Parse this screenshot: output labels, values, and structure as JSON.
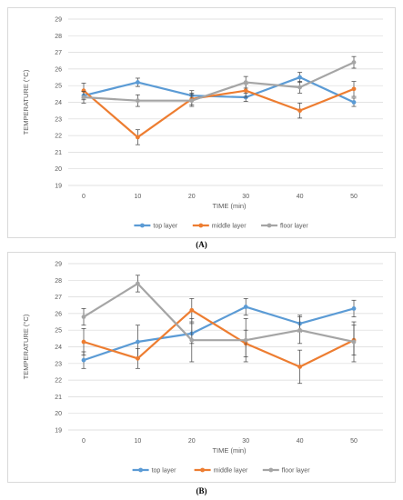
{
  "chart_data": [
    {
      "type": "line",
      "panel": "(A)",
      "xlabel": "TIME  (min)",
      "ylabel": "TEMPERATURE (°C)",
      "x": [
        0,
        10,
        20,
        30,
        40,
        50
      ],
      "ylim": [
        19,
        29
      ],
      "yticks": [
        19,
        20,
        21,
        22,
        23,
        24,
        25,
        26,
        27,
        28,
        29
      ],
      "grid": true,
      "legend_placement": "bottom",
      "series": [
        {
          "name": "top layer",
          "color": "#5b9bd5",
          "values": [
            24.4,
            25.2,
            24.4,
            24.3,
            25.5,
            24.0
          ],
          "errors": [
            0.25,
            0.25,
            0.3,
            0.25,
            0.3,
            0.25
          ]
        },
        {
          "name": "middle layer",
          "color": "#ed7d31",
          "values": [
            24.7,
            21.9,
            24.2,
            24.7,
            23.5,
            24.8
          ],
          "errors": [
            0.45,
            0.45,
            0.35,
            0.4,
            0.45,
            0.45
          ]
        },
        {
          "name": "floor layer",
          "color": "#a5a5a5",
          "values": [
            24.3,
            24.1,
            24.1,
            25.2,
            24.9,
            26.4
          ],
          "errors": [
            0.35,
            0.35,
            0.35,
            0.35,
            0.35,
            0.35
          ]
        }
      ]
    },
    {
      "type": "line",
      "panel": "(B)",
      "xlabel": "TIME (min)",
      "ylabel": "TEMPERATURE (°C)",
      "x": [
        0,
        10,
        20,
        30,
        40,
        50
      ],
      "ylim": [
        19,
        29
      ],
      "yticks": [
        19,
        20,
        21,
        22,
        23,
        24,
        25,
        26,
        27,
        28,
        29
      ],
      "grid": true,
      "legend_placement": "bottom",
      "series": [
        {
          "name": "top  layer",
          "color": "#5b9bd5",
          "values": [
            23.2,
            24.3,
            24.8,
            26.4,
            25.4,
            26.3
          ],
          "errors": [
            0.5,
            1.0,
            0.6,
            0.5,
            0.5,
            0.5
          ]
        },
        {
          "name": "middle layer",
          "color": "#ed7d31",
          "values": [
            24.3,
            23.3,
            26.2,
            24.2,
            22.8,
            24.4
          ],
          "errors": [
            0.8,
            0.6,
            0.7,
            0.8,
            1.0,
            0.9
          ]
        },
        {
          "name": "floor layer",
          "color": "#a5a5a5",
          "values": [
            25.8,
            27.8,
            24.4,
            24.4,
            25.0,
            24.3
          ],
          "errors": [
            0.5,
            0.5,
            1.3,
            1.3,
            0.8,
            1.2
          ]
        }
      ]
    }
  ],
  "labels": {
    "a": "(A)",
    "b": "(B)"
  }
}
